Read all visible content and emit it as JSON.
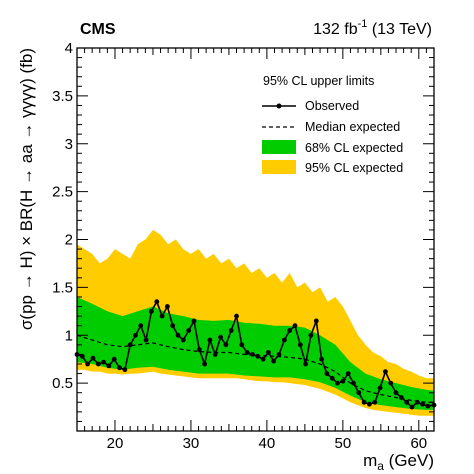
{
  "header": {
    "experiment": "CMS",
    "lumi_value": "132 fb",
    "lumi_exponent": "-1",
    "lumi_energy": " (13 TeV)"
  },
  "chart_data": {
    "type": "line",
    "xlabel_main": "m",
    "xlabel_sub": "a",
    "xlabel_unit": " (GeV)",
    "ylabel": "σ(pp → H) × BR(H → aa → γγγγ) (fb)",
    "xlim": [
      15,
      62
    ],
    "ylim": [
      0,
      4
    ],
    "x_ticks": [
      20,
      30,
      40,
      50,
      60
    ],
    "y_ticks": [
      0.5,
      1,
      1.5,
      2,
      2.5,
      3,
      3.5,
      4
    ],
    "y_tick_labels": [
      "0.5",
      "1",
      "1.5",
      "2",
      "2.5",
      "3",
      "3.5",
      "4"
    ],
    "legend": {
      "title": "95% CL upper limits",
      "placement": "top-right",
      "entries": [
        "Observed",
        "Median expected",
        "68% CL expected",
        "95% CL expected"
      ]
    },
    "colors": {
      "band68": "#00cc00",
      "band95": "#ffcc00",
      "observed": "#000000",
      "expected": "#000000"
    },
    "expected": {
      "x": [
        15,
        17,
        19,
        21,
        23,
        25,
        27,
        29,
        31,
        33,
        35,
        37,
        39,
        41,
        43,
        45,
        47,
        49,
        51,
        53,
        55,
        57,
        59,
        61,
        62
      ],
      "y": [
        1.0,
        0.95,
        0.9,
        0.88,
        0.9,
        0.92,
        0.88,
        0.85,
        0.83,
        0.82,
        0.82,
        0.8,
        0.79,
        0.78,
        0.77,
        0.75,
        0.7,
        0.62,
        0.5,
        0.42,
        0.38,
        0.35,
        0.32,
        0.3,
        0.3
      ]
    },
    "band68": {
      "x": [
        15,
        17,
        19,
        21,
        23,
        25,
        27,
        29,
        31,
        33,
        35,
        37,
        39,
        41,
        43,
        45,
        47,
        49,
        51,
        53,
        55,
        57,
        59,
        61,
        62
      ],
      "lower": [
        0.72,
        0.7,
        0.66,
        0.64,
        0.66,
        0.67,
        0.64,
        0.62,
        0.6,
        0.6,
        0.6,
        0.58,
        0.57,
        0.56,
        0.56,
        0.54,
        0.51,
        0.45,
        0.37,
        0.3,
        0.27,
        0.25,
        0.23,
        0.22,
        0.22
      ],
      "upper": [
        1.4,
        1.33,
        1.25,
        1.2,
        1.25,
        1.3,
        1.23,
        1.2,
        1.16,
        1.15,
        1.16,
        1.13,
        1.12,
        1.1,
        1.1,
        1.08,
        1.0,
        0.9,
        0.72,
        0.6,
        0.54,
        0.5,
        0.46,
        0.43,
        0.42
      ]
    },
    "band95": {
      "x": [
        15,
        16,
        17,
        18,
        19,
        20,
        21,
        22,
        23,
        24,
        25,
        26,
        27,
        28,
        29,
        30,
        31,
        32,
        33,
        34,
        35,
        36,
        37,
        38,
        39,
        40,
        41,
        42,
        43,
        44,
        45,
        46,
        47,
        48,
        49,
        50,
        51,
        52,
        53,
        54,
        55,
        56,
        57,
        58,
        59,
        60,
        61,
        62
      ],
      "lower": [
        0.64,
        0.64,
        0.62,
        0.62,
        0.6,
        0.6,
        0.59,
        0.6,
        0.6,
        0.61,
        0.62,
        0.6,
        0.59,
        0.58,
        0.57,
        0.56,
        0.55,
        0.55,
        0.55,
        0.55,
        0.55,
        0.55,
        0.54,
        0.53,
        0.52,
        0.52,
        0.51,
        0.51,
        0.5,
        0.49,
        0.48,
        0.46,
        0.44,
        0.41,
        0.38,
        0.34,
        0.3,
        0.27,
        0.24,
        0.22,
        0.21,
        0.2,
        0.19,
        0.18,
        0.17,
        0.16,
        0.16,
        0.16
      ],
      "upper": [
        1.95,
        1.9,
        1.85,
        1.75,
        1.8,
        1.9,
        1.85,
        1.8,
        1.95,
        2.0,
        2.1,
        2.05,
        1.95,
        2.0,
        1.9,
        1.85,
        1.9,
        1.8,
        1.85,
        1.75,
        1.8,
        1.7,
        1.75,
        1.65,
        1.7,
        1.6,
        1.65,
        1.55,
        1.65,
        1.5,
        1.55,
        1.45,
        1.5,
        1.35,
        1.4,
        1.3,
        1.15,
        1.0,
        0.9,
        0.82,
        0.78,
        0.72,
        0.7,
        0.65,
        0.62,
        0.58,
        0.55,
        0.55
      ]
    },
    "observed": {
      "x": [
        15,
        15.7,
        16.4,
        17.1,
        17.8,
        18.5,
        19.2,
        19.9,
        20.6,
        21.3,
        22.0,
        22.7,
        23.4,
        24.1,
        24.8,
        25.5,
        26.2,
        26.9,
        27.6,
        28.3,
        29.0,
        29.7,
        30.4,
        31.1,
        31.8,
        32.5,
        33.2,
        33.9,
        34.6,
        35.3,
        36.0,
        36.7,
        37.4,
        38.1,
        38.8,
        39.5,
        40.2,
        40.9,
        41.6,
        42.3,
        43.0,
        43.7,
        44.4,
        45.1,
        45.8,
        46.5,
        47.2,
        47.9,
        48.6,
        49.3,
        50.0,
        50.7,
        51.4,
        52.1,
        52.8,
        53.5,
        54.2,
        54.9,
        55.6,
        56.3,
        57.0,
        57.7,
        58.4,
        59.1,
        59.8,
        60.5,
        61.2,
        62.0
      ],
      "y": [
        0.8,
        0.78,
        0.7,
        0.76,
        0.7,
        0.72,
        0.68,
        0.75,
        0.66,
        0.64,
        0.9,
        1.0,
        1.1,
        0.95,
        1.25,
        1.35,
        1.2,
        1.3,
        1.1,
        1.0,
        0.95,
        1.05,
        1.15,
        0.85,
        0.7,
        0.95,
        0.8,
        0.98,
        0.9,
        1.05,
        1.2,
        0.9,
        0.82,
        0.8,
        0.78,
        0.75,
        0.82,
        0.73,
        0.8,
        0.95,
        1.05,
        1.1,
        0.9,
        0.7,
        1.0,
        1.15,
        0.75,
        0.6,
        0.55,
        0.5,
        0.52,
        0.6,
        0.5,
        0.4,
        0.3,
        0.28,
        0.3,
        0.45,
        0.62,
        0.5,
        0.4,
        0.35,
        0.3,
        0.25,
        0.3,
        0.28,
        0.26,
        0.27
      ]
    }
  }
}
